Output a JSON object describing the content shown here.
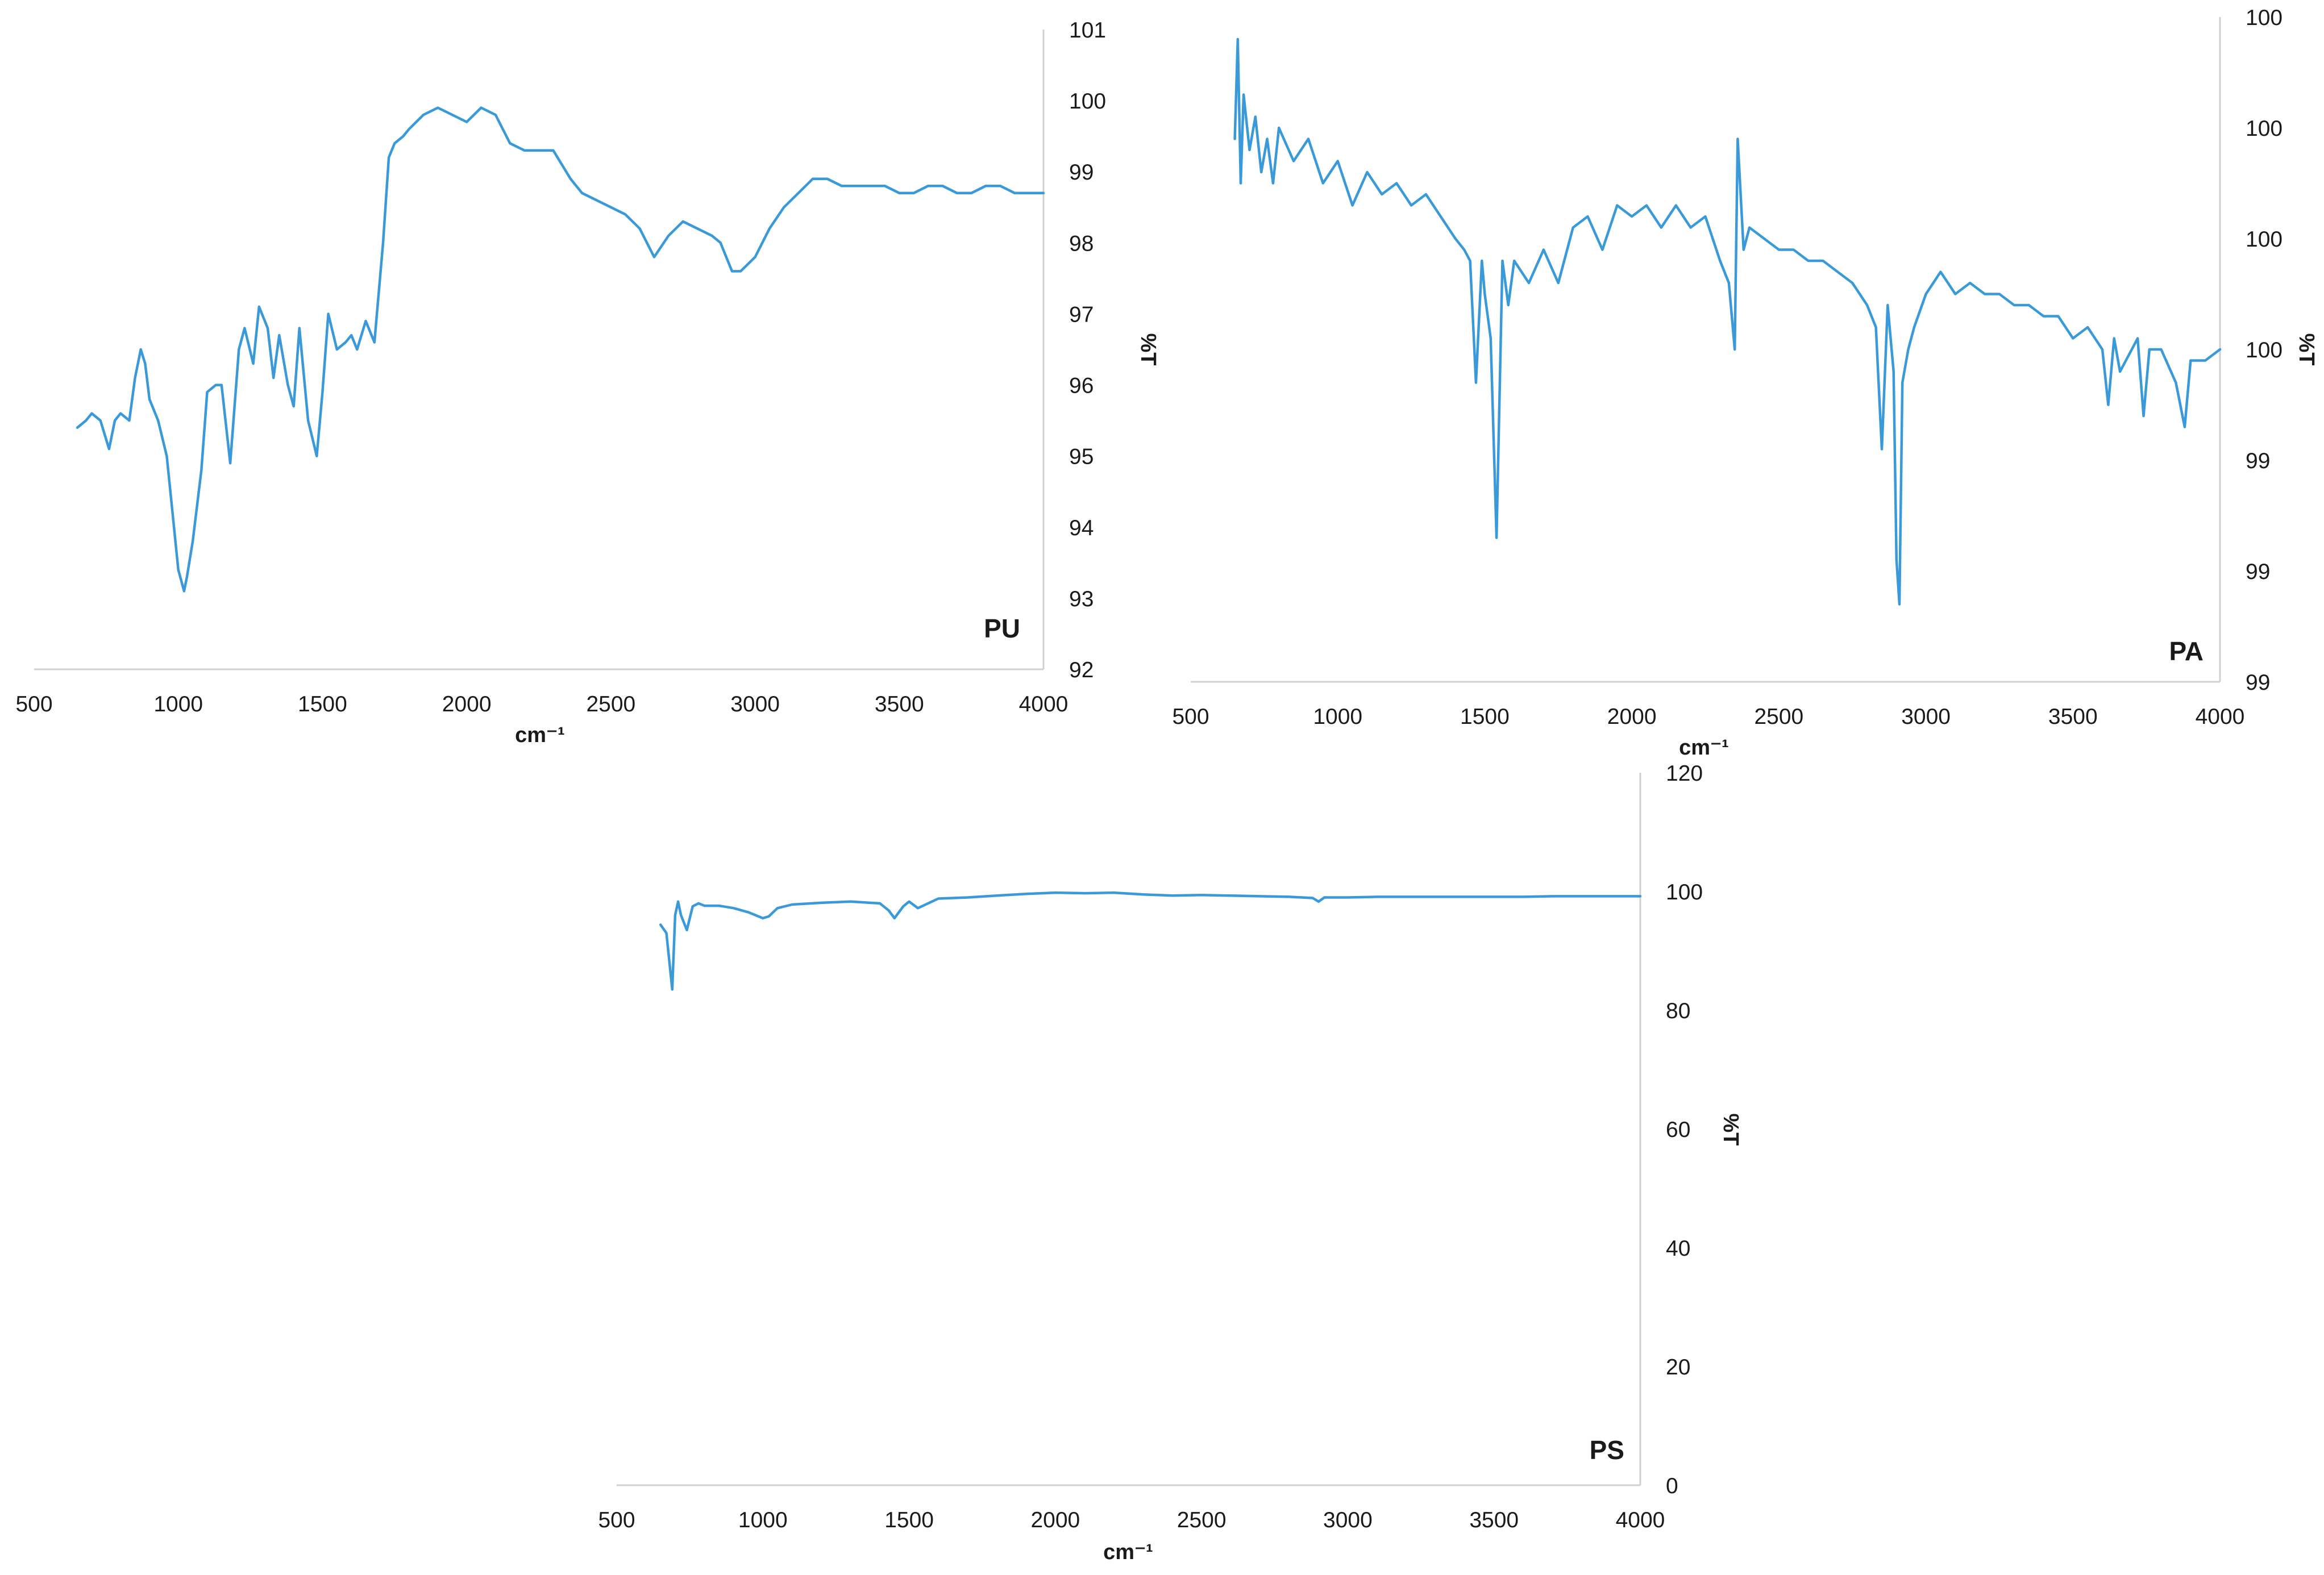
{
  "colors": {
    "series": "#3a9ad9",
    "axis": "#d0d0d0",
    "text": "#1a1a1a"
  },
  "chart_data": [
    {
      "type": "line",
      "label": "PU",
      "xlabel": "cm⁻¹",
      "ylabel": "%T",
      "xlim": [
        500,
        4000
      ],
      "ylim": [
        92,
        101
      ],
      "xticks": [
        "500",
        "1000",
        "1500",
        "2000",
        "2500",
        "3000",
        "3500",
        "4000"
      ],
      "yticks": [
        "92",
        "93",
        "94",
        "95",
        "96",
        "97",
        "98",
        "99",
        "100",
        "101"
      ],
      "grid": false,
      "series": [
        {
          "x": [
            650,
            680,
            700,
            730,
            760,
            780,
            800,
            830,
            850,
            870,
            885,
            900,
            930,
            960,
            980,
            1000,
            1020,
            1030,
            1050,
            1080,
            1100,
            1130,
            1150,
            1180,
            1210,
            1230,
            1260,
            1280,
            1310,
            1330,
            1350,
            1380,
            1400,
            1420,
            1450,
            1480,
            1500,
            1520,
            1550,
            1580,
            1600,
            1620,
            1650,
            1680,
            1710,
            1730,
            1750,
            1780,
            1800,
            1850,
            1900,
            1950,
            2000,
            2050,
            2100,
            2150,
            2200,
            2250,
            2300,
            2330,
            2360,
            2400,
            2450,
            2500,
            2550,
            2600,
            2650,
            2700,
            2750,
            2800,
            2850,
            2880,
            2900,
            2920,
            2950,
            3000,
            3050,
            3100,
            3150,
            3200,
            3250,
            3300,
            3350,
            3400,
            3450,
            3500,
            3550,
            3600,
            3650,
            3700,
            3750,
            3800,
            3850,
            3900,
            3950,
            4000
          ],
          "values": [
            95.4,
            95.5,
            95.6,
            95.5,
            95.1,
            95.5,
            95.6,
            95.5,
            96.1,
            96.5,
            96.3,
            95.8,
            95.5,
            95.0,
            94.2,
            93.4,
            93.1,
            93.3,
            93.8,
            94.8,
            95.9,
            96.0,
            96.0,
            94.9,
            96.5,
            96.8,
            96.3,
            97.1,
            96.8,
            96.1,
            96.7,
            96.0,
            95.7,
            96.8,
            95.5,
            95.0,
            95.9,
            97.0,
            96.5,
            96.6,
            96.7,
            96.5,
            96.9,
            96.6,
            98.0,
            99.2,
            99.4,
            99.5,
            99.6,
            99.8,
            99.9,
            99.8,
            99.7,
            99.9,
            99.8,
            99.4,
            99.3,
            99.3,
            99.3,
            99.1,
            98.9,
            98.7,
            98.6,
            98.5,
            98.4,
            98.2,
            97.8,
            98.1,
            98.3,
            98.2,
            98.1,
            98.0,
            97.8,
            97.6,
            97.6,
            97.8,
            98.2,
            98.5,
            98.7,
            98.9,
            98.9,
            98.8,
            98.8,
            98.8,
            98.8,
            98.7,
            98.7,
            98.8,
            98.8,
            98.7,
            98.7,
            98.8,
            98.8,
            98.7,
            98.7,
            98.7
          ]
        }
      ]
    },
    {
      "type": "line",
      "label": "PA",
      "xlabel": "cm⁻¹",
      "ylabel": "%T",
      "xlim": [
        500,
        4000
      ],
      "ylim": [
        0,
        6
      ],
      "xticks": [
        "500",
        "1000",
        "1500",
        "2000",
        "2500",
        "3000",
        "3500",
        "4000"
      ],
      "yticks": [
        "99",
        "99",
        "99",
        "100",
        "100",
        "100",
        "100"
      ],
      "grid": false,
      "series": [
        {
          "x": [
            650,
            660,
            670,
            680,
            700,
            720,
            740,
            760,
            780,
            800,
            850,
            900,
            950,
            1000,
            1050,
            1100,
            1150,
            1200,
            1250,
            1300,
            1350,
            1400,
            1430,
            1450,
            1470,
            1490,
            1500,
            1520,
            1540,
            1560,
            1580,
            1600,
            1650,
            1700,
            1750,
            1800,
            1850,
            1900,
            1950,
            2000,
            2050,
            2100,
            2150,
            2200,
            2250,
            2300,
            2330,
            2350,
            2360,
            2380,
            2400,
            2450,
            2500,
            2550,
            2600,
            2650,
            2700,
            2750,
            2800,
            2830,
            2850,
            2870,
            2890,
            2900,
            2910,
            2920,
            2940,
            2960,
            3000,
            3050,
            3100,
            3150,
            3200,
            3250,
            3300,
            3350,
            3400,
            3450,
            3500,
            3550,
            3600,
            3620,
            3640,
            3660,
            3700,
            3720,
            3740,
            3760,
            3800,
            3850,
            3880,
            3900,
            3950,
            4000
          ],
          "values": [
            4.9,
            5.8,
            4.5,
            5.3,
            4.8,
            5.1,
            4.6,
            4.9,
            4.5,
            5.0,
            4.7,
            4.9,
            4.5,
            4.7,
            4.3,
            4.6,
            4.4,
            4.5,
            4.3,
            4.4,
            4.2,
            4.0,
            3.9,
            3.8,
            2.7,
            3.8,
            3.5,
            3.1,
            1.3,
            3.8,
            3.4,
            3.8,
            3.6,
            3.9,
            3.6,
            4.1,
            4.2,
            3.9,
            4.3,
            4.2,
            4.3,
            4.1,
            4.3,
            4.1,
            4.2,
            3.8,
            3.6,
            3.0,
            4.9,
            3.9,
            4.1,
            4.0,
            3.9,
            3.9,
            3.8,
            3.8,
            3.7,
            3.6,
            3.4,
            3.2,
            2.1,
            3.4,
            2.8,
            1.1,
            0.7,
            2.7,
            3.0,
            3.2,
            3.5,
            3.7,
            3.5,
            3.6,
            3.5,
            3.5,
            3.4,
            3.4,
            3.3,
            3.3,
            3.1,
            3.2,
            3.0,
            2.5,
            3.1,
            2.8,
            3.0,
            3.1,
            2.4,
            3.0,
            3.0,
            2.7,
            2.3,
            2.9,
            2.9,
            3.0
          ]
        }
      ]
    },
    {
      "type": "line",
      "label": "PS",
      "xlabel": "cm⁻¹",
      "ylabel": "%T",
      "xlim": [
        500,
        4000
      ],
      "ylim": [
        0,
        120
      ],
      "xticks": [
        "500",
        "1000",
        "1500",
        "2000",
        "2500",
        "3000",
        "3500",
        "4000"
      ],
      "yticks": [
        "0",
        "20",
        "40",
        "60",
        "80",
        "100",
        "120"
      ],
      "grid": false,
      "series": [
        {
          "x": [
            650,
            670,
            690,
            700,
            710,
            720,
            740,
            760,
            780,
            800,
            850,
            900,
            950,
            1000,
            1020,
            1050,
            1100,
            1200,
            1300,
            1400,
            1430,
            1450,
            1480,
            1500,
            1530,
            1600,
            1700,
            1800,
            1900,
            2000,
            2100,
            2200,
            2300,
            2400,
            2500,
            2600,
            2700,
            2800,
            2880,
            2900,
            2920,
            3000,
            3100,
            3200,
            3300,
            3400,
            3500,
            3600,
            3700,
            3800,
            3900,
            4000
          ],
          "values": [
            94.4,
            93.0,
            83.5,
            96.0,
            98.3,
            96.0,
            93.5,
            97.5,
            98.0,
            97.6,
            97.6,
            97.2,
            96.5,
            95.5,
            95.8,
            97.2,
            97.8,
            98.1,
            98.3,
            98.0,
            96.8,
            95.5,
            97.5,
            98.3,
            97.2,
            98.8,
            99.0,
            99.3,
            99.6,
            99.8,
            99.7,
            99.8,
            99.5,
            99.3,
            99.4,
            99.3,
            99.2,
            99.1,
            98.9,
            98.3,
            99.0,
            99.0,
            99.1,
            99.1,
            99.1,
            99.1,
            99.1,
            99.1,
            99.2,
            99.2,
            99.2,
            99.2
          ]
        }
      ]
    }
  ]
}
